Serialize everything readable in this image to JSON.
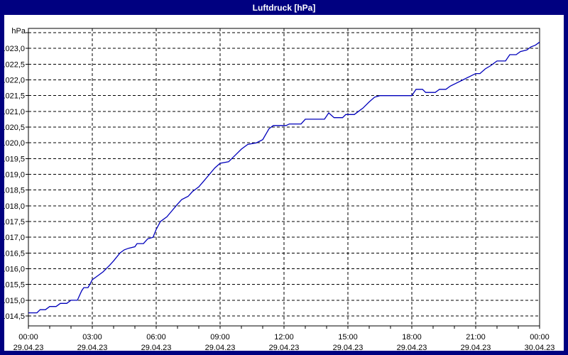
{
  "window": {
    "title": "Luftdruck [hPa]",
    "frame_color": "#000080",
    "title_text_color": "#ffffff",
    "plot_background": "#ffffff"
  },
  "chart_data": {
    "type": "line",
    "title": "Luftdruck [hPa]",
    "y_unit_label": "hPa",
    "grid": "dashed",
    "legend": "none",
    "ylim": [
      1014.185,
      1023.635
    ],
    "xlim_hours": [
      0,
      24
    ],
    "y_gridline_values": [
      1023.5,
      1023.0,
      1022.5,
      1022.0,
      1021.5,
      1021.0,
      1020.5,
      1020.0,
      1019.5,
      1019.0,
      1018.5,
      1018.0,
      1017.5,
      1017.0,
      1016.5,
      1016.0,
      1015.5,
      1015.0,
      1014.5
    ],
    "y_tick_labels": [
      {
        "v": 1023.0,
        "label": "1023,0"
      },
      {
        "v": 1022.5,
        "label": "1022,5"
      },
      {
        "v": 1022.0,
        "label": "1022,0"
      },
      {
        "v": 1021.5,
        "label": "1021,5"
      },
      {
        "v": 1021.0,
        "label": "1021,0"
      },
      {
        "v": 1020.5,
        "label": "1020,5"
      },
      {
        "v": 1020.0,
        "label": "1020,0"
      },
      {
        "v": 1019.5,
        "label": "1019,5"
      },
      {
        "v": 1019.0,
        "label": "1019,0"
      },
      {
        "v": 1018.5,
        "label": "1018,5"
      },
      {
        "v": 1018.0,
        "label": "1018,0"
      },
      {
        "v": 1017.5,
        "label": "1017,5"
      },
      {
        "v": 1017.0,
        "label": "1017,0"
      },
      {
        "v": 1016.5,
        "label": "1016,5"
      },
      {
        "v": 1016.0,
        "label": "1016,0"
      },
      {
        "v": 1015.5,
        "label": "1015,5"
      },
      {
        "v": 1015.0,
        "label": "1015,0"
      },
      {
        "v": 1014.5,
        "label": "1014,5"
      }
    ],
    "x_major_ticks": [
      {
        "hours": 0,
        "time": "00:00",
        "date": "29.04.23"
      },
      {
        "hours": 3,
        "time": "03:00",
        "date": "29.04.23"
      },
      {
        "hours": 6,
        "time": "06:00",
        "date": "29.04.23"
      },
      {
        "hours": 9,
        "time": "09:00",
        "date": "29.04.23"
      },
      {
        "hours": 12,
        "time": "12:00",
        "date": "29.04.23"
      },
      {
        "hours": 15,
        "time": "15:00",
        "date": "29.04.23"
      },
      {
        "hours": 18,
        "time": "18:00",
        "date": "29.04.23"
      },
      {
        "hours": 21,
        "time": "21:00",
        "date": "29.04.23"
      },
      {
        "hours": 24,
        "time": "00:00",
        "date": "30.04.23"
      }
    ],
    "x_minor_tick_step_hours": 1,
    "series": [
      {
        "name": "Luftdruck",
        "color": "#0000bb",
        "points": [
          [
            0.0,
            1014.6
          ],
          [
            0.4,
            1014.6
          ],
          [
            0.55,
            1014.7
          ],
          [
            0.8,
            1014.7
          ],
          [
            1.0,
            1014.8
          ],
          [
            1.3,
            1014.8
          ],
          [
            1.5,
            1014.9
          ],
          [
            1.8,
            1014.9
          ],
          [
            2.0,
            1015.0
          ],
          [
            2.3,
            1015.0
          ],
          [
            2.5,
            1015.3
          ],
          [
            2.6,
            1015.4
          ],
          [
            2.8,
            1015.4
          ],
          [
            3.0,
            1015.65
          ],
          [
            3.2,
            1015.75
          ],
          [
            3.5,
            1015.9
          ],
          [
            3.8,
            1016.1
          ],
          [
            4.0,
            1016.25
          ],
          [
            4.3,
            1016.5
          ],
          [
            4.5,
            1016.6
          ],
          [
            4.7,
            1016.65
          ],
          [
            5.0,
            1016.7
          ],
          [
            5.1,
            1016.8
          ],
          [
            5.4,
            1016.8
          ],
          [
            5.6,
            1016.95
          ],
          [
            5.85,
            1017.0
          ],
          [
            6.0,
            1017.25
          ],
          [
            6.2,
            1017.5
          ],
          [
            6.5,
            1017.65
          ],
          [
            6.75,
            1017.85
          ],
          [
            7.0,
            1018.05
          ],
          [
            7.2,
            1018.2
          ],
          [
            7.5,
            1018.3
          ],
          [
            7.7,
            1018.45
          ],
          [
            8.0,
            1018.6
          ],
          [
            8.25,
            1018.8
          ],
          [
            8.5,
            1019.0
          ],
          [
            8.75,
            1019.2
          ],
          [
            9.0,
            1019.35
          ],
          [
            9.4,
            1019.4
          ],
          [
            9.7,
            1019.6
          ],
          [
            10.0,
            1019.8
          ],
          [
            10.3,
            1019.95
          ],
          [
            10.7,
            1020.0
          ],
          [
            11.0,
            1020.1
          ],
          [
            11.3,
            1020.45
          ],
          [
            11.5,
            1020.55
          ],
          [
            12.1,
            1020.55
          ],
          [
            12.25,
            1020.6
          ],
          [
            12.8,
            1020.6
          ],
          [
            13.0,
            1020.75
          ],
          [
            13.9,
            1020.75
          ],
          [
            14.1,
            1020.95
          ],
          [
            14.35,
            1020.8
          ],
          [
            14.75,
            1020.8
          ],
          [
            14.9,
            1020.9
          ],
          [
            15.3,
            1020.9
          ],
          [
            15.5,
            1021.0
          ],
          [
            15.7,
            1021.1
          ],
          [
            16.0,
            1021.3
          ],
          [
            16.25,
            1021.45
          ],
          [
            16.5,
            1021.5
          ],
          [
            18.0,
            1021.5
          ],
          [
            18.2,
            1021.7
          ],
          [
            18.5,
            1021.7
          ],
          [
            18.65,
            1021.6
          ],
          [
            19.1,
            1021.6
          ],
          [
            19.3,
            1021.7
          ],
          [
            19.6,
            1021.7
          ],
          [
            19.8,
            1021.8
          ],
          [
            20.1,
            1021.9
          ],
          [
            20.4,
            1022.0
          ],
          [
            20.7,
            1022.1
          ],
          [
            21.0,
            1022.2
          ],
          [
            21.2,
            1022.2
          ],
          [
            21.45,
            1022.35
          ],
          [
            21.7,
            1022.45
          ],
          [
            22.0,
            1022.6
          ],
          [
            22.4,
            1022.6
          ],
          [
            22.6,
            1022.8
          ],
          [
            22.9,
            1022.8
          ],
          [
            23.1,
            1022.9
          ],
          [
            23.4,
            1022.95
          ],
          [
            23.6,
            1023.05
          ],
          [
            23.8,
            1023.1
          ],
          [
            24.0,
            1023.2
          ]
        ]
      }
    ]
  }
}
